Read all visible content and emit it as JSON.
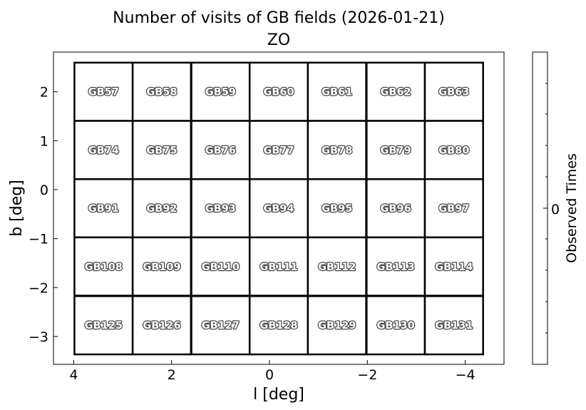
{
  "chart_data": {
    "type": "heatmap",
    "title": "Number of visits of GB fields (2026-01-21)",
    "subtitle": "ZO",
    "xlabel": "l [deg]",
    "ylabel": "b [deg]",
    "xlim": [
      4.4,
      -4.8
    ],
    "ylim": [
      -3.55,
      2.8
    ],
    "x_inverted": true,
    "xticks": [
      4,
      2,
      0,
      -2,
      -4
    ],
    "xtick_labels": [
      "4",
      "2",
      "0",
      "−2",
      "−4"
    ],
    "yticks": [
      2,
      1,
      0,
      -1,
      -2,
      -3
    ],
    "ytick_labels": [
      "2",
      "1",
      "0",
      "−1",
      "−2",
      "−3"
    ],
    "grid": false,
    "field_size_deg": 1.19,
    "column_centers_l": [
      3.39,
      2.2,
      1.0,
      -0.19,
      -1.38,
      -2.58,
      -3.77
    ],
    "row_centers_b": [
      2.0,
      0.81,
      -0.38,
      -1.57,
      -2.77
    ],
    "fields": [
      [
        "GB57",
        "GB58",
        "GB59",
        "GB60",
        "GB61",
        "GB62",
        "GB63"
      ],
      [
        "GB74",
        "GB75",
        "GB76",
        "GB77",
        "GB78",
        "GB79",
        "GB80"
      ],
      [
        "GB91",
        "GB92",
        "GB93",
        "GB94",
        "GB95",
        "GB96",
        "GB97"
      ],
      [
        "GB108",
        "GB109",
        "GB110",
        "GB111",
        "GB112",
        "GB113",
        "GB114"
      ],
      [
        "GB125",
        "GB126",
        "GB127",
        "GB128",
        "GB129",
        "GB130",
        "GB131"
      ]
    ],
    "visits": [
      [
        0,
        0,
        0,
        0,
        0,
        0,
        0
      ],
      [
        0,
        0,
        0,
        0,
        0,
        0,
        0
      ],
      [
        0,
        0,
        0,
        0,
        0,
        0,
        0
      ],
      [
        0,
        0,
        0,
        0,
        0,
        0,
        0
      ],
      [
        0,
        0,
        0,
        0,
        0,
        0,
        0
      ]
    ],
    "colorbar": {
      "label": "Observed Times",
      "tick_labels": [
        "0"
      ],
      "fill_color": "#ffffff"
    }
  }
}
